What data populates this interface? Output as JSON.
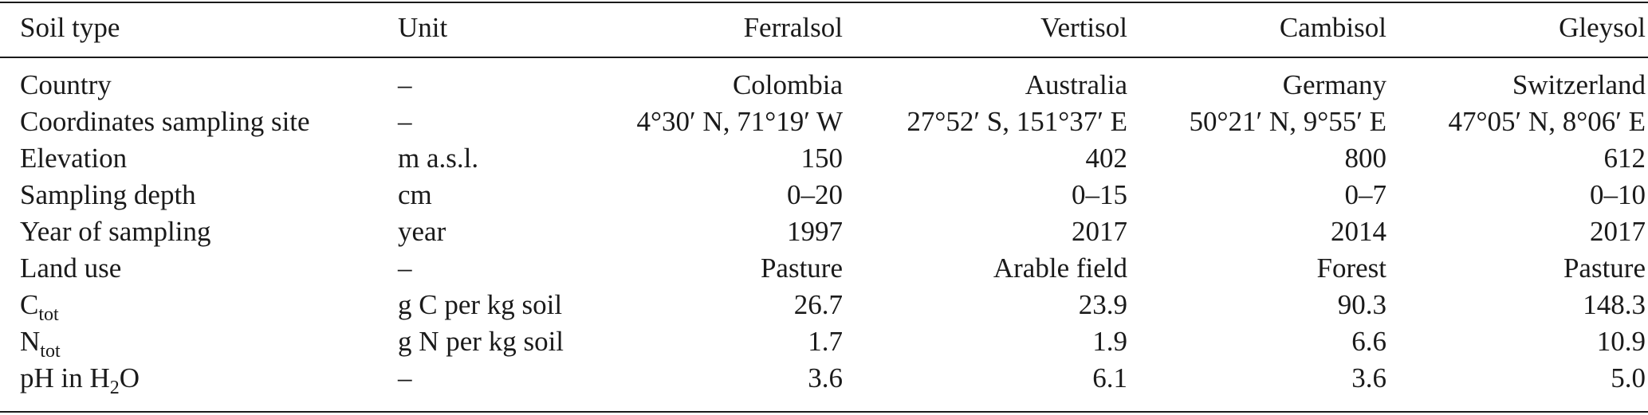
{
  "header": {
    "soil_type": "Soil type",
    "unit": "Unit",
    "columns": [
      "Ferralsol",
      "Vertisol",
      "Cambisol",
      "Gleysol"
    ]
  },
  "rows": [
    {
      "name": "Country",
      "unit": "–",
      "values": [
        "Colombia",
        "Australia",
        "Germany",
        "Switzerland"
      ]
    },
    {
      "name": "Coordinates sampling site",
      "unit": "–",
      "values": [
        "4°30′ N, 71°19′ W",
        "27°52′ S, 151°37′ E",
        "50°21′ N, 9°55′ E",
        "47°05′ N, 8°06′ E"
      ]
    },
    {
      "name": "Elevation",
      "unit": "m a.s.l.",
      "values": [
        "150",
        "402",
        "800",
        "612"
      ]
    },
    {
      "name": "Sampling depth",
      "unit": "cm",
      "values": [
        "0–20",
        "0–15",
        "0–7",
        "0–10"
      ]
    },
    {
      "name": "Year of sampling",
      "unit": "year",
      "values": [
        "1997",
        "2017",
        "2014",
        "2017"
      ]
    },
    {
      "name": "Land use",
      "unit": "–",
      "values": [
        "Pasture",
        "Arable field",
        "Forest",
        "Pasture"
      ]
    },
    {
      "name": "C",
      "name_sub": "tot",
      "unit": "g C per kg soil",
      "values": [
        "26.7",
        "23.9",
        "90.3",
        "148.3"
      ]
    },
    {
      "name": "N",
      "name_sub": "tot",
      "unit": "g N per kg soil",
      "values": [
        "1.7",
        "1.9",
        "6.6",
        "10.9"
      ]
    },
    {
      "name": "pH in H",
      "name_sub": "2",
      "name_after": "O",
      "unit": "–",
      "values": [
        "3.6",
        "6.1",
        "3.6",
        "5.0"
      ]
    }
  ]
}
